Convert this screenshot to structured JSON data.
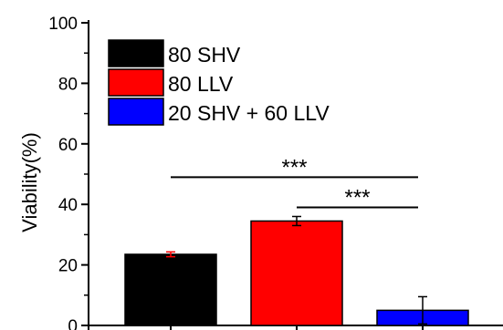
{
  "chart_data": {
    "type": "bar",
    "title": "",
    "xlabel": "",
    "ylabel": "Viability(%)",
    "ylim": [
      0,
      100
    ],
    "yticks": [
      0,
      20,
      40,
      60,
      80,
      100
    ],
    "categories": [
      "80 SHV",
      "80 LLV",
      "20 SHV + 60 LLV"
    ],
    "values": [
      23.5,
      34.5,
      5
    ],
    "errors": [
      0.8,
      1.5,
      4.5
    ],
    "colors": [
      "#000000",
      "#ff0000",
      "#0000ff"
    ],
    "legend": {
      "placement": "top-left",
      "entries": [
        {
          "label": "80 SHV",
          "color": "#000000"
        },
        {
          "label": "80 LLV",
          "color": "#ff0000"
        },
        {
          "label": "20 SHV + 60 LLV",
          "color": "#0000ff"
        }
      ]
    },
    "significance": [
      {
        "from": 0,
        "to": 2,
        "label": "***",
        "y": 49
      },
      {
        "from": 1,
        "to": 2,
        "label": "***",
        "y": 39
      }
    ],
    "grid": false
  }
}
